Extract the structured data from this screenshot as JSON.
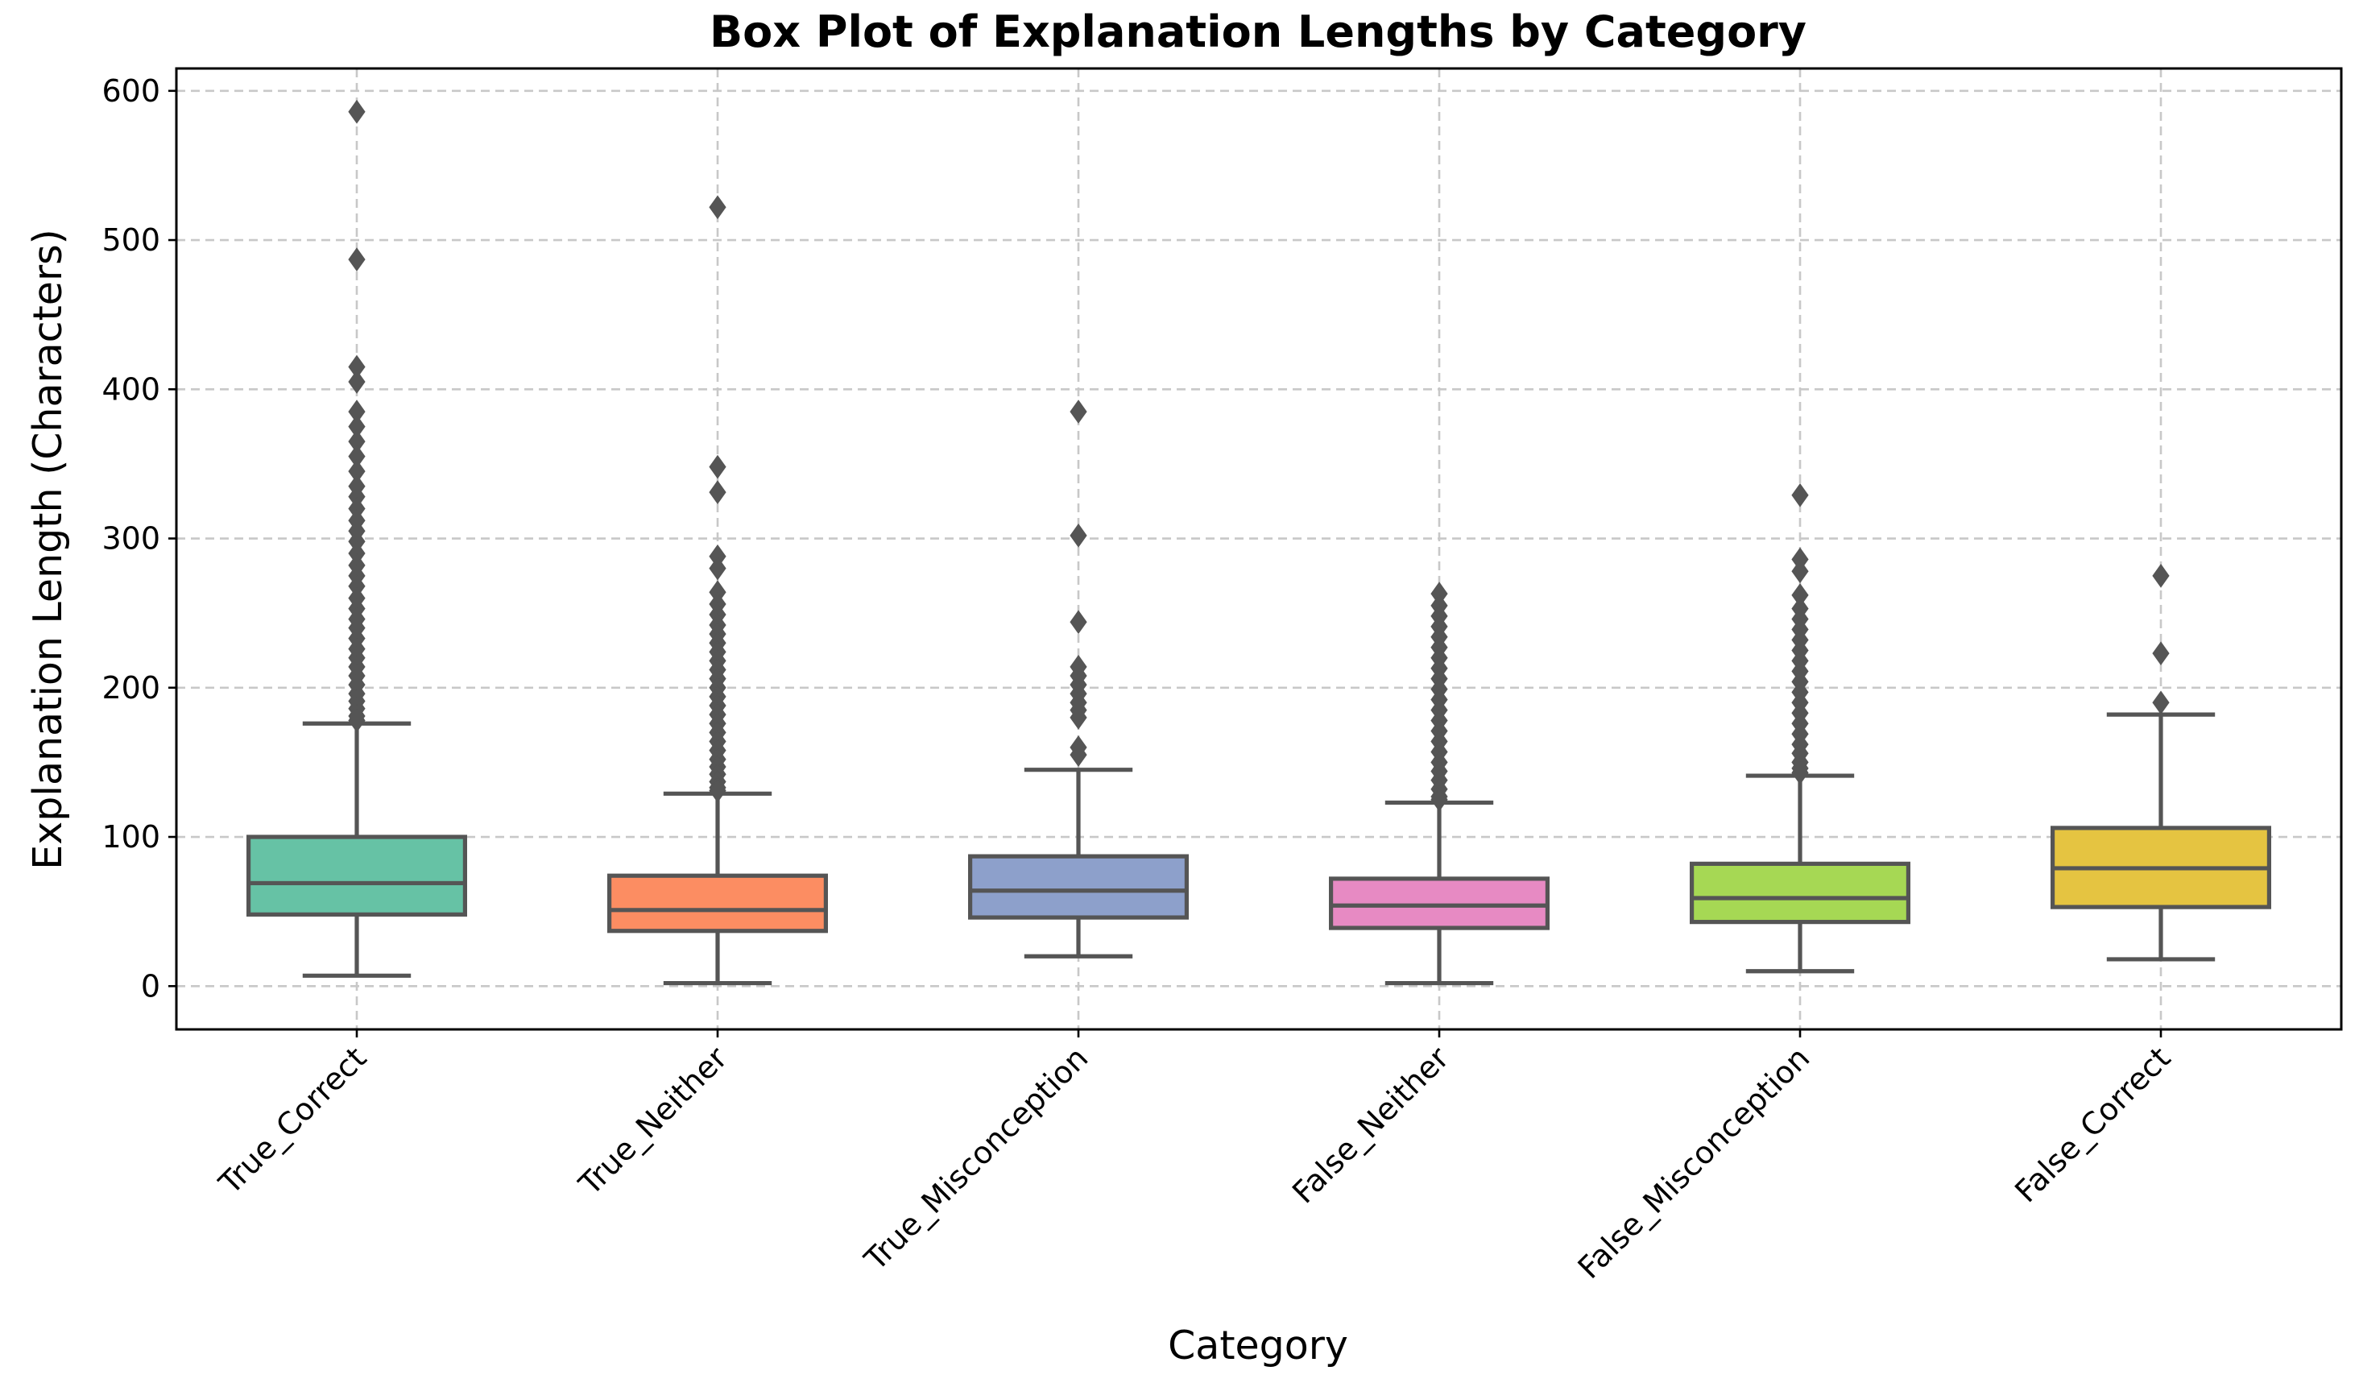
{
  "chart_data": {
    "type": "box",
    "title": "Box Plot of Explanation Lengths by Category",
    "xlabel": "Category",
    "ylabel": "Explanation Length (Characters)",
    "ylim": [
      -29,
      615
    ],
    "yticks": [
      0,
      100,
      200,
      300,
      400,
      500,
      600
    ],
    "grid": true,
    "line_color": "#555555",
    "categories": [
      "True_Correct",
      "True_Neither",
      "True_Misconception",
      "False_Neither",
      "False_Misconception",
      "False_Correct"
    ],
    "boxes": [
      {
        "category": "True_Correct",
        "color": "#66c2a5",
        "whisker_low": 7,
        "q1": 48,
        "median": 69,
        "q3": 100,
        "whisker_high": 176,
        "outliers": [
          586,
          487,
          415,
          405,
          385,
          375,
          365,
          355,
          345,
          335,
          328,
          320,
          312,
          305,
          298,
          290,
          282,
          275,
          268,
          260,
          253,
          246,
          240,
          233,
          226,
          220,
          214,
          208,
          202,
          196,
          191,
          186,
          181,
          178
        ]
      },
      {
        "category": "True_Neither",
        "color": "#fc8d62",
        "whisker_low": 2,
        "q1": 37,
        "median": 51,
        "q3": 74,
        "whisker_high": 129,
        "outliers": [
          522,
          348,
          331,
          288,
          280,
          264,
          256,
          249,
          242,
          236,
          230,
          224,
          218,
          212,
          206,
          200,
          194,
          188,
          182,
          176,
          170,
          164,
          158,
          152,
          147,
          142,
          137,
          133,
          131
        ]
      },
      {
        "category": "True_Misconception",
        "color": "#8da0cb",
        "whisker_low": 20,
        "q1": 46,
        "median": 64,
        "q3": 87,
        "whisker_high": 145,
        "outliers": [
          385,
          302,
          244,
          214,
          208,
          202,
          196,
          190,
          185,
          180,
          160,
          155
        ]
      },
      {
        "category": "False_Neither",
        "color": "#e78ac3",
        "whisker_low": 2,
        "q1": 39,
        "median": 54,
        "q3": 72,
        "whisker_high": 123,
        "outliers": [
          263,
          255,
          248,
          241,
          234,
          227,
          220,
          213,
          206,
          199,
          192,
          185,
          178,
          171,
          164,
          157,
          150,
          144,
          138,
          132,
          127,
          125
        ]
      },
      {
        "category": "False_Misconception",
        "color": "#a6d854",
        "whisker_low": 10,
        "q1": 43,
        "median": 59,
        "q3": 82,
        "whisker_high": 141,
        "outliers": [
          329,
          286,
          278,
          262,
          253,
          246,
          239,
          232,
          225,
          218,
          211,
          204,
          197,
          190,
          183,
          176,
          169,
          162,
          156,
          150,
          146,
          143
        ]
      },
      {
        "category": "False_Correct",
        "color": "#e5c441",
        "whisker_low": 18,
        "q1": 53,
        "median": 79,
        "q3": 106,
        "whisker_high": 182,
        "outliers": [
          275,
          223,
          190
        ]
      }
    ]
  }
}
